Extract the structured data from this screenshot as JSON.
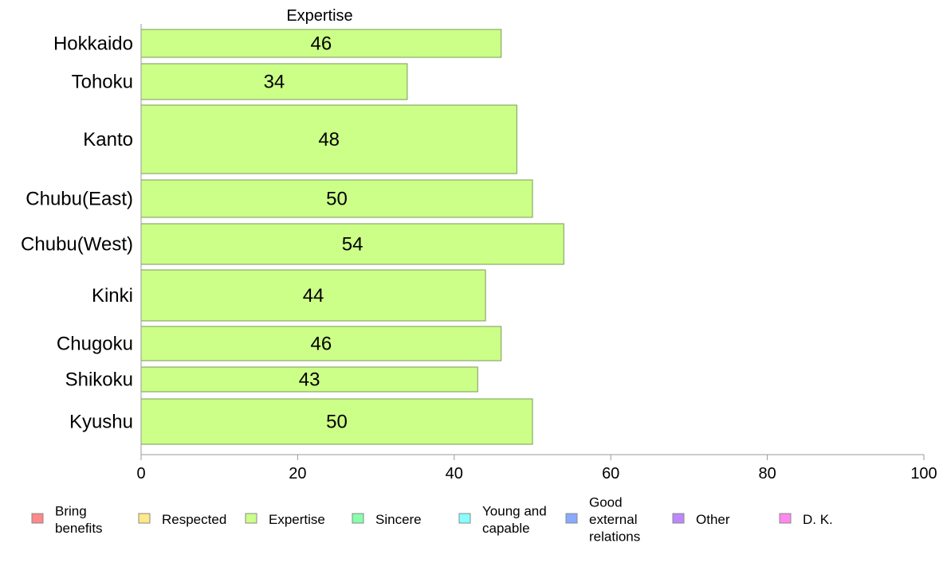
{
  "chart_data": {
    "type": "bar",
    "orientation": "horizontal",
    "title": "Expertise",
    "categories": [
      "Hokkaido",
      "Tohoku",
      "Kanto",
      "Chubu(East)",
      "Chubu(West)",
      "Kinki",
      "Chugoku",
      "Shikoku",
      "Kyushu"
    ],
    "values": [
      46,
      34,
      48,
      50,
      54,
      44,
      46,
      43,
      50
    ],
    "bar_color": "#ccff88",
    "bar_border": "#7a9a5a",
    "xlim": [
      0,
      100
    ],
    "xticks": [
      0,
      20,
      40,
      60,
      80,
      100
    ],
    "grid": false,
    "legend_position": "bottom",
    "legend": [
      {
        "label": "Bring benefits",
        "lines": [
          "Bring",
          "benefits"
        ],
        "color": "#ff8888"
      },
      {
        "label": "Respected",
        "lines": [
          "Respected"
        ],
        "color": "#ffe888"
      },
      {
        "label": "Expertise",
        "lines": [
          "Expertise"
        ],
        "color": "#ccff88"
      },
      {
        "label": "Sincere",
        "lines": [
          "Sincere"
        ],
        "color": "#88ffaa"
      },
      {
        "label": "Young and capable",
        "lines": [
          "Young and",
          "capable"
        ],
        "color": "#88ffff"
      },
      {
        "label": "Good external relations",
        "lines": [
          "Good",
          "external",
          "relations"
        ],
        "color": "#88aaff"
      },
      {
        "label": "Other",
        "lines": [
          "Other"
        ],
        "color": "#bb88ff"
      },
      {
        "label": "D. K.",
        "lines": [
          "D. K."
        ],
        "color": "#ff88ee"
      }
    ]
  }
}
